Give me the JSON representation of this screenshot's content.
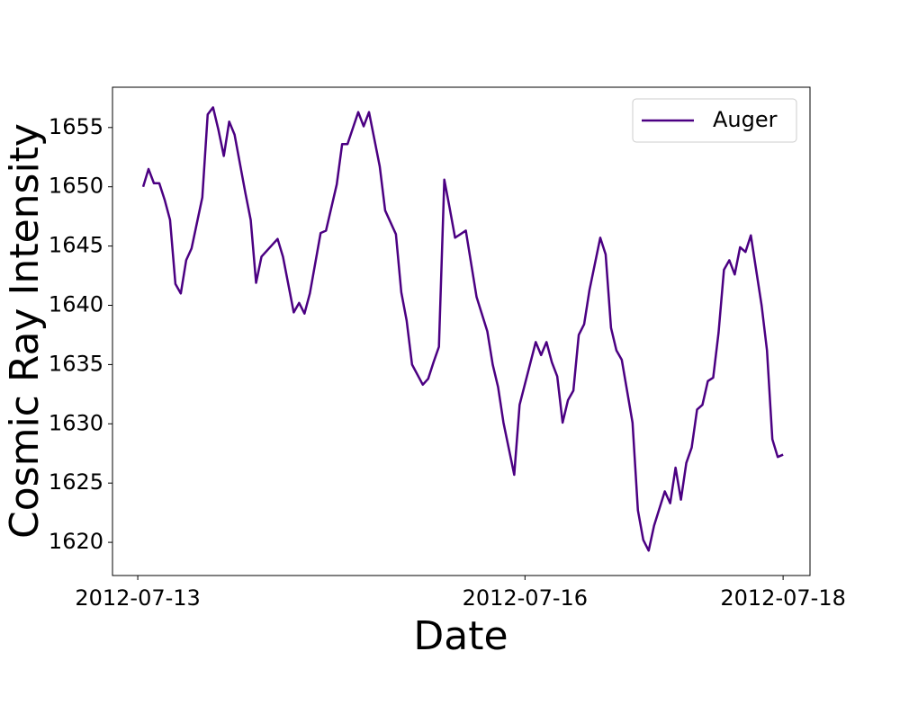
{
  "chart_data": {
    "type": "line",
    "x_label": "Date",
    "y_label": "Cosmic Ray Intensity",
    "x": [
      "2012-07-13 01:00",
      "2012-07-13 02:00",
      "2012-07-13 03:00",
      "2012-07-13 04:00",
      "2012-07-13 05:00",
      "2012-07-13 06:00",
      "2012-07-13 07:00",
      "2012-07-13 08:00",
      "2012-07-13 09:00",
      "2012-07-13 10:00",
      "2012-07-13 12:00",
      "2012-07-13 13:00",
      "2012-07-13 14:00",
      "2012-07-13 15:00",
      "2012-07-13 16:00",
      "2012-07-13 17:00",
      "2012-07-13 18:00",
      "2012-07-13 20:00",
      "2012-07-13 21:00",
      "2012-07-13 22:00",
      "2012-07-13 23:00",
      "2012-07-14 02:00",
      "2012-07-14 03:00",
      "2012-07-14 05:00",
      "2012-07-14 06:00",
      "2012-07-14 07:00",
      "2012-07-14 08:00",
      "2012-07-14 10:00",
      "2012-07-14 11:00",
      "2012-07-14 13:00",
      "2012-07-14 14:00",
      "2012-07-14 15:00",
      "2012-07-14 17:00",
      "2012-07-14 18:00",
      "2012-07-14 19:00",
      "2012-07-14 21:00",
      "2012-07-14 22:00",
      "2012-07-15 00:00",
      "2012-07-15 01:00",
      "2012-07-15 02:00",
      "2012-07-15 03:00",
      "2012-07-15 05:00",
      "2012-07-15 06:00",
      "2012-07-15 07:00",
      "2012-07-15 08:00",
      "2012-07-15 09:00",
      "2012-07-15 10:00",
      "2012-07-15 11:00",
      "2012-07-15 12:00",
      "2012-07-15 13:00",
      "2012-07-15 15:00",
      "2012-07-15 17:00",
      "2012-07-15 18:00",
      "2012-07-15 19:00",
      "2012-07-15 20:00",
      "2012-07-15 22:00",
      "2012-07-15 23:00",
      "2012-07-16 02:00",
      "2012-07-16 03:00",
      "2012-07-16 04:00",
      "2012-07-16 05:00",
      "2012-07-16 06:00",
      "2012-07-16 07:00",
      "2012-07-16 08:00",
      "2012-07-16 09:00",
      "2012-07-16 10:00",
      "2012-07-16 11:00",
      "2012-07-16 12:00",
      "2012-07-16 14:00",
      "2012-07-16 15:00",
      "2012-07-16 16:00",
      "2012-07-16 17:00",
      "2012-07-16 18:00",
      "2012-07-16 20:00",
      "2012-07-16 21:00",
      "2012-07-16 22:00",
      "2012-07-16 23:00",
      "2012-07-17 00:00",
      "2012-07-17 02:00",
      "2012-07-17 03:00",
      "2012-07-17 04:00",
      "2012-07-17 05:00",
      "2012-07-17 06:00",
      "2012-07-17 07:00",
      "2012-07-17 08:00",
      "2012-07-17 09:00",
      "2012-07-17 10:00",
      "2012-07-17 11:00",
      "2012-07-17 12:00",
      "2012-07-17 13:00",
      "2012-07-17 14:00",
      "2012-07-17 15:00",
      "2012-07-17 16:00",
      "2012-07-17 17:00",
      "2012-07-17 18:00",
      "2012-07-17 20:00",
      "2012-07-17 21:00",
      "2012-07-17 22:00",
      "2012-07-17 23:00",
      "2012-07-18 00:00"
    ],
    "series": [
      {
        "name": "Auger",
        "color": "#4b0082",
        "values": [
          1650.0,
          1651.5,
          1650.3,
          1650.3,
          1648.9,
          1647.2,
          1641.8,
          1641.0,
          1643.8,
          1644.8,
          1649.1,
          1656.1,
          1656.7,
          1654.8,
          1652.6,
          1655.5,
          1654.4,
          1649.5,
          1647.2,
          1641.9,
          1644.1,
          1645.6,
          1644.1,
          1639.4,
          1640.2,
          1639.3,
          1641.0,
          1646.1,
          1646.3,
          1650.2,
          1653.6,
          1653.6,
          1656.3,
          1655.1,
          1656.3,
          1651.7,
          1648.0,
          1646.0,
          1641.1,
          1638.7,
          1635.0,
          1633.3,
          1633.8,
          1635.2,
          1636.5,
          1650.6,
          1648.2,
          1645.7,
          1646.0,
          1646.3,
          1640.7,
          1637.8,
          1635.0,
          1633.1,
          1630.1,
          1625.7,
          1631.6,
          1636.9,
          1635.8,
          1636.9,
          1635.2,
          1634.0,
          1630.1,
          1632.0,
          1632.8,
          1637.5,
          1638.4,
          1641.3,
          1645.7,
          1644.3,
          1638.1,
          1636.2,
          1635.4,
          1630.1,
          1622.7,
          1620.2,
          1619.3,
          1621.4,
          1624.3,
          1623.3,
          1626.3,
          1623.6,
          1626.7,
          1628.0,
          1631.2,
          1631.6,
          1633.6,
          1633.9,
          1637.7,
          1643.0,
          1643.8,
          1642.6,
          1644.9,
          1644.5,
          1645.9,
          1640.0,
          1636.2,
          1628.7,
          1627.2,
          1627.4
        ]
      }
    ],
    "xlim": [
      "2012-07-12 19:18",
      "2012-07-18 05:00"
    ],
    "xticks": [
      "2012-07-13",
      "2012-07-16",
      "2012-07-18"
    ],
    "ylim": [
      1617.2,
      1658.4
    ],
    "yticks": [
      1620,
      1625,
      1630,
      1635,
      1640,
      1645,
      1650,
      1655
    ],
    "legend": "upper right"
  }
}
